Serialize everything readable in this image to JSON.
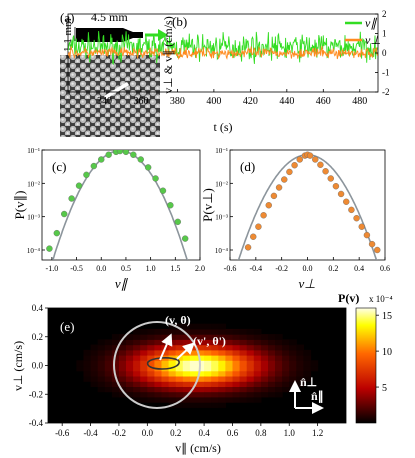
{
  "colors": {
    "v_par": "#33dd22",
    "v_perp": "#ff8a1e",
    "fit": "#8c959c",
    "marker_par": "#57c84a",
    "marker_perp": "#ee8a33",
    "circle": "#cccccc"
  },
  "panel_a": {
    "label": "(a)",
    "length_label": "4.5 mm",
    "width_label": "1.1 mm",
    "icon": "particle-photo"
  },
  "chart_data": [
    {
      "type": "line",
      "panel": "(b)",
      "xlabel": "t (s)",
      "ylabel": "v⊥ & v∥ (cm/s)",
      "xlim": [
        320,
        490
      ],
      "ylim": [
        -2.0,
        2.0
      ],
      "xticks": [
        340,
        360,
        380,
        400,
        420,
        440,
        460,
        480
      ],
      "yticks": [
        -2,
        -1,
        0,
        1,
        2
      ],
      "series": [
        {
          "name": "v∥",
          "mean": 0.3,
          "amplitude": 1.0
        },
        {
          "name": "v⊥",
          "mean": 0.0,
          "amplitude": 0.4
        }
      ]
    },
    {
      "type": "scatter",
      "panel": "(c)",
      "xlabel": "v∥",
      "ylabel": "P(v∥)",
      "xlim": [
        -1.2,
        2.0
      ],
      "ylim_log10": [
        -4.3,
        -1
      ],
      "xticks": [
        -1.0,
        -0.5,
        0.0,
        0.5,
        1.0,
        1.5,
        2.0
      ],
      "yticks": [
        "10⁻⁴",
        "10⁻³",
        "10⁻²",
        "10⁻¹"
      ],
      "points": [
        [
          -1.05,
          0.00011
        ],
        [
          -0.9,
          0.00032
        ],
        [
          -0.75,
          0.0012
        ],
        [
          -0.6,
          0.0035
        ],
        [
          -0.45,
          0.0085
        ],
        [
          -0.3,
          0.018
        ],
        [
          -0.15,
          0.033
        ],
        [
          0.0,
          0.052
        ],
        [
          0.15,
          0.072
        ],
        [
          0.3,
          0.088
        ],
        [
          0.38,
          0.093
        ],
        [
          0.5,
          0.088
        ],
        [
          0.65,
          0.072
        ],
        [
          0.8,
          0.052
        ],
        [
          0.95,
          0.03
        ],
        [
          1.1,
          0.014
        ],
        [
          1.25,
          0.006
        ],
        [
          1.4,
          0.0022
        ],
        [
          1.55,
          0.0007
        ],
        [
          1.7,
          0.00022
        ]
      ],
      "fit": {
        "mean": 0.38,
        "sigma": 0.35,
        "amplitude": 0.095
      }
    },
    {
      "type": "scatter",
      "panel": "(d)",
      "xlabel": "v⊥",
      "ylabel": "P(v⊥)",
      "xlim": [
        -0.6,
        0.6
      ],
      "ylim_log10": [
        -4.3,
        -1
      ],
      "xticks": [
        -0.6,
        -0.4,
        -0.2,
        0.0,
        0.2,
        0.4,
        0.6
      ],
      "yticks": [
        "10⁻⁴",
        "10⁻³",
        "10⁻²",
        "10⁻¹"
      ],
      "points": [
        [
          -0.46,
          0.00012
        ],
        [
          -0.42,
          0.00025
        ],
        [
          -0.38,
          0.0005
        ],
        [
          -0.34,
          0.0011
        ],
        [
          -0.3,
          0.0022
        ],
        [
          -0.26,
          0.0042
        ],
        [
          -0.22,
          0.0075
        ],
        [
          -0.18,
          0.013
        ],
        [
          -0.14,
          0.022
        ],
        [
          -0.1,
          0.035
        ],
        [
          -0.06,
          0.052
        ],
        [
          -0.02,
          0.068
        ],
        [
          0.0,
          0.072
        ],
        [
          0.02,
          0.068
        ],
        [
          0.06,
          0.052
        ],
        [
          0.1,
          0.036
        ],
        [
          0.14,
          0.023
        ],
        [
          0.18,
          0.014
        ],
        [
          0.22,
          0.0082
        ],
        [
          0.26,
          0.0048
        ],
        [
          0.3,
          0.0028
        ],
        [
          0.34,
          0.0016
        ],
        [
          0.38,
          0.0009
        ],
        [
          0.42,
          0.0005
        ],
        [
          0.46,
          0.00028
        ],
        [
          0.5,
          0.00015
        ],
        [
          0.54,
          0.0001
        ]
      ],
      "fit": {
        "mean": 0.0,
        "sigma": 0.14,
        "amplitude": 0.072
      }
    },
    {
      "type": "heatmap",
      "panel": "(e)",
      "xlabel": "v∥ (cm/s)",
      "ylabel": "v⊥ (cm/s)",
      "xlim": [
        -0.7,
        1.4
      ],
      "ylim": [
        -0.4,
        0.4
      ],
      "xticks": [
        -0.6,
        -0.4,
        -0.2,
        0.0,
        0.2,
        0.4,
        0.6,
        0.8,
        1.0,
        1.2
      ],
      "yticks": [
        -0.4,
        -0.2,
        0.0,
        0.2,
        0.4
      ],
      "colorbar": {
        "title": "P(v)",
        "exponent": "x 10⁻⁴",
        "ticks": [
          5,
          10,
          15
        ],
        "range": [
          0,
          16
        ]
      },
      "peak": {
        "x": 0.35,
        "y": 0.0,
        "value": 16
      },
      "annotations": [
        "(v, θ)",
        "(v', θ')",
        "n̂⊥",
        "n̂∥"
      ]
    }
  ]
}
